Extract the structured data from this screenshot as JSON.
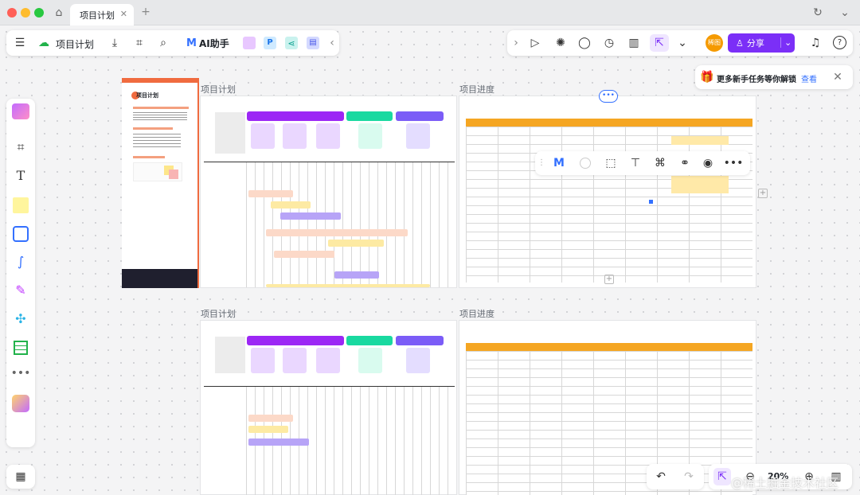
{
  "tab": {
    "title": "项目计划"
  },
  "toolbar_left": {
    "doc_title": "项目计划",
    "ai_label": "AI助手"
  },
  "toolbar_right": {
    "share_label": "分享",
    "avatar_text": "稀图"
  },
  "notice": {
    "text": "更多新手任务等你解锁",
    "link": "查看"
  },
  "frames": [
    {
      "label": "项目计划"
    },
    {
      "label": "项目进度"
    },
    {
      "label": "项目计划"
    },
    {
      "label": "项目进度"
    }
  ],
  "cover": {
    "title": "项目计划"
  },
  "zoom": {
    "value": "20%"
  },
  "watermark": "@稀土掘金技术社区",
  "colors": {
    "accent": "#7b2ff7",
    "share_bg": "#7b2ff7",
    "orange": "#f5a623",
    "purple_bar": "#9c27f5"
  }
}
